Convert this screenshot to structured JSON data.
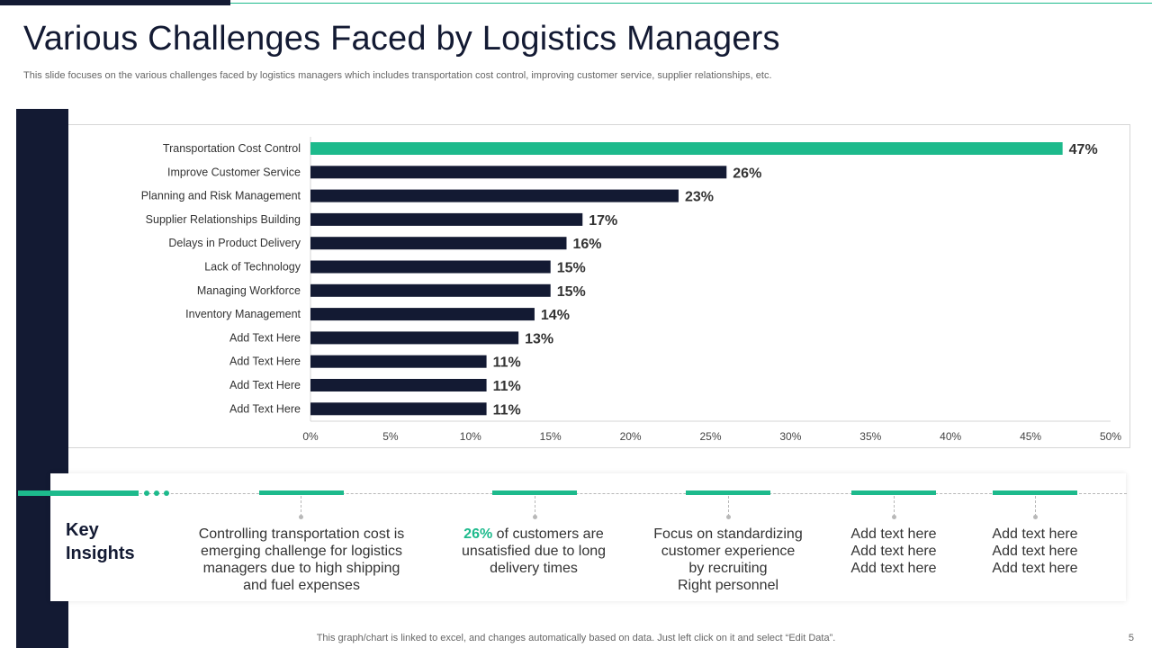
{
  "slide": {
    "title": "Various Challenges Faced by Logistics Managers",
    "subtitle": "This slide focuses on the various challenges faced by logistics managers which includes transportation cost control, improving customer service, supplier relationships, etc.",
    "footer_note": "This graph/chart is linked to excel,  and changes automatically based on data. Just left click on it and select “Edit Data”.",
    "page_number": "5"
  },
  "colors": {
    "navy": "#131a33",
    "accent": "#1dba8c",
    "grid": "#d6d6d6"
  },
  "chart_data": {
    "type": "bar",
    "orientation": "horizontal",
    "categories": [
      "Transportation Cost Control",
      "Improve Customer Service",
      "Planning and Risk Management",
      "Supplier Relationships Building",
      "Delays in Product Delivery",
      "Lack of Technology",
      "Managing Workforce",
      "Inventory Management",
      "Add Text Here",
      "Add Text Here",
      "Add Text Here",
      "Add Text Here"
    ],
    "values": [
      47,
      26,
      23,
      17,
      16,
      15,
      15,
      14,
      13,
      11,
      11,
      11
    ],
    "value_labels": [
      "47%",
      "26%",
      "23%",
      "17%",
      "16%",
      "15%",
      "15%",
      "14%",
      "13%",
      "11%",
      "11%",
      "11%"
    ],
    "highlight_index": 0,
    "xlim": [
      0,
      50
    ],
    "xticks": [
      0,
      5,
      10,
      15,
      20,
      25,
      30,
      35,
      40,
      45,
      50
    ],
    "xtick_labels": [
      "0%",
      "5%",
      "10%",
      "15%",
      "20%",
      "25%",
      "30%",
      "35%",
      "40%",
      "45%",
      "50%"
    ],
    "title": "",
    "xlabel": "",
    "ylabel": "",
    "grid": false,
    "legend": "none"
  },
  "insights": {
    "heading_line1": "Key",
    "heading_line2": "Insights",
    "items": [
      {
        "lines": [
          "Controlling transportation cost is",
          "emerging challenge for logistics",
          "managers due to high shipping",
          "and fuel expenses"
        ]
      },
      {
        "highlight": "26%",
        "lines": [
          " of customers are",
          "unsatisfied due to long",
          "delivery times"
        ]
      },
      {
        "lines": [
          "Focus on standardizing",
          "customer experience",
          "by recruiting",
          "Right personnel"
        ]
      },
      {
        "lines": [
          "Add text here",
          "Add text here",
          "Add text here"
        ]
      },
      {
        "lines": [
          "Add text here",
          "Add text here",
          "Add text here"
        ]
      }
    ]
  }
}
